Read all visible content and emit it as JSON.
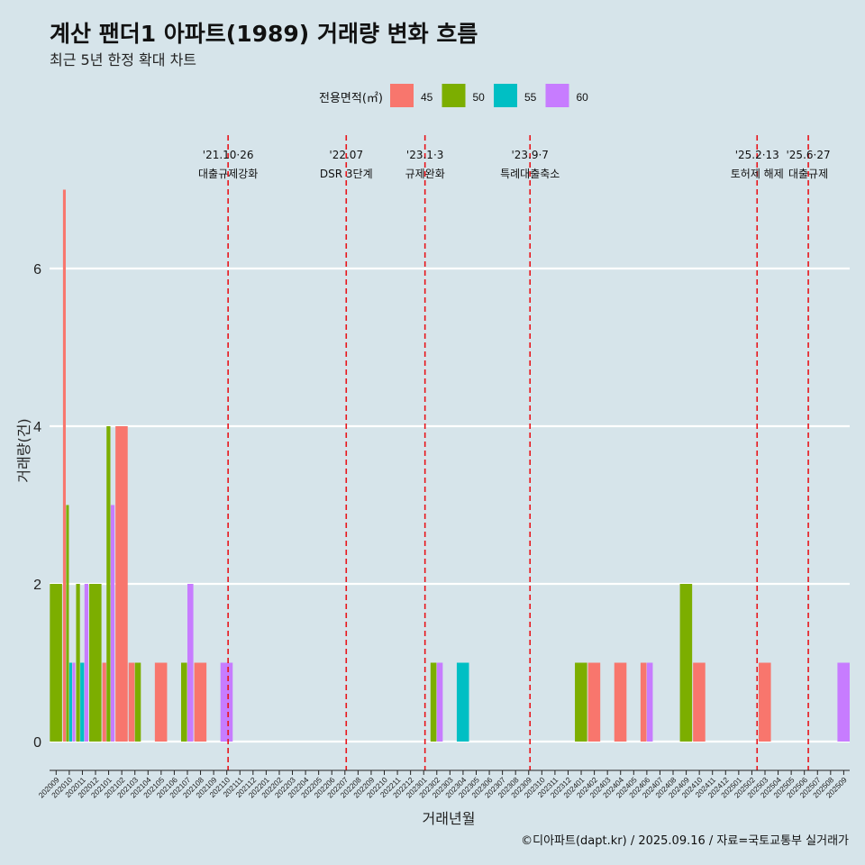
{
  "header": {
    "title": "계산 팬더1 아파트(1989) 거래량 변화 흐름",
    "subtitle": "최근 5년 한정 확대 차트"
  },
  "caption": "©디아파트(dapt.kr) / 2025.09.16 / 자료=국토교통부 실거래가",
  "chart_data": {
    "type": "bar",
    "title": "계산 팬더1 아파트(1989) 거래량 변화 흐름",
    "xlabel": "거래년월",
    "ylabel": "거래량(건)",
    "ylim": [
      -0.4,
      7.2
    ],
    "yticks": [
      0,
      2,
      4,
      6
    ],
    "legend": {
      "title": "전용면적(㎡)",
      "position": "top"
    },
    "categories": [
      "202009",
      "202010",
      "202011",
      "202012",
      "202101",
      "202102",
      "202103",
      "202104",
      "202105",
      "202106",
      "202107",
      "202108",
      "202109",
      "202110",
      "202111",
      "202112",
      "202201",
      "202202",
      "202203",
      "202204",
      "202205",
      "202206",
      "202207",
      "202208",
      "202209",
      "202210",
      "202211",
      "202212",
      "202301",
      "202302",
      "202303",
      "202304",
      "202305",
      "202306",
      "202307",
      "202308",
      "202309",
      "202310",
      "202311",
      "202312",
      "202401",
      "202402",
      "202403",
      "202404",
      "202405",
      "202406",
      "202407",
      "202408",
      "202409",
      "202410",
      "202411",
      "202412",
      "202501",
      "202502",
      "202503",
      "202504",
      "202505",
      "202506",
      "202507",
      "202508",
      "202509"
    ],
    "series": [
      {
        "name": "45",
        "color": "#f8766d",
        "values": [
          0,
          7,
          0,
          0,
          1,
          4,
          1,
          0,
          1,
          0,
          0,
          1,
          0,
          0,
          0,
          0,
          0,
          0,
          0,
          0,
          0,
          0,
          0,
          0,
          0,
          0,
          0,
          0,
          0,
          0,
          0,
          0,
          0,
          0,
          0,
          0,
          0,
          0,
          0,
          0,
          0,
          1,
          0,
          1,
          0,
          1,
          0,
          0,
          0,
          1,
          0,
          0,
          0,
          0,
          1,
          0,
          0,
          0,
          0,
          0,
          0
        ]
      },
      {
        "name": "50",
        "color": "#7cae00",
        "values": [
          2,
          3,
          2,
          2,
          4,
          0,
          1,
          0,
          0,
          0,
          1,
          0,
          0,
          0,
          0,
          0,
          0,
          0,
          0,
          0,
          0,
          0,
          0,
          0,
          0,
          0,
          0,
          0,
          0,
          1,
          0,
          0,
          0,
          0,
          0,
          0,
          0,
          0,
          0,
          0,
          1,
          0,
          0,
          0,
          0,
          0,
          0,
          0,
          2,
          0,
          0,
          0,
          0,
          0,
          0,
          0,
          0,
          0,
          0,
          0,
          0
        ]
      },
      {
        "name": "55",
        "color": "#00bfc4",
        "values": [
          0,
          1,
          1,
          0,
          0,
          0,
          0,
          0,
          0,
          0,
          0,
          0,
          0,
          0,
          0,
          0,
          0,
          0,
          0,
          0,
          0,
          0,
          0,
          0,
          0,
          0,
          0,
          0,
          0,
          0,
          0,
          1,
          0,
          0,
          0,
          0,
          0,
          0,
          0,
          0,
          0,
          0,
          0,
          0,
          0,
          0,
          0,
          0,
          0,
          0,
          0,
          0,
          0,
          0,
          0,
          0,
          0,
          0,
          0,
          0,
          0
        ]
      },
      {
        "name": "60",
        "color": "#c77cff",
        "values": [
          0,
          1,
          2,
          0,
          3,
          0,
          0,
          0,
          0,
          0,
          2,
          0,
          0,
          1,
          0,
          0,
          0,
          0,
          0,
          0,
          0,
          0,
          0,
          0,
          0,
          0,
          0,
          0,
          0,
          1,
          0,
          0,
          0,
          0,
          0,
          0,
          0,
          0,
          0,
          0,
          0,
          0,
          0,
          0,
          0,
          1,
          0,
          0,
          0,
          0,
          0,
          0,
          0,
          0,
          0,
          0,
          0,
          0,
          0,
          0,
          1
        ]
      }
    ],
    "events": [
      {
        "date": "'21.10·26",
        "label": "대출규제강화",
        "at": 13.1
      },
      {
        "date": "'22.07",
        "label": "DSR 3단계",
        "at": 22.1
      },
      {
        "date": "'23.1·3",
        "label": "규제완화",
        "at": 28.1
      },
      {
        "date": "'23.9·7",
        "label": "특례대출축소",
        "at": 36.1
      },
      {
        "date": "'25.2·13",
        "label": "토허제 해제",
        "at": 53.4
      },
      {
        "date": "'25.6·27",
        "label": "대출규제",
        "at": 57.3
      }
    ]
  }
}
